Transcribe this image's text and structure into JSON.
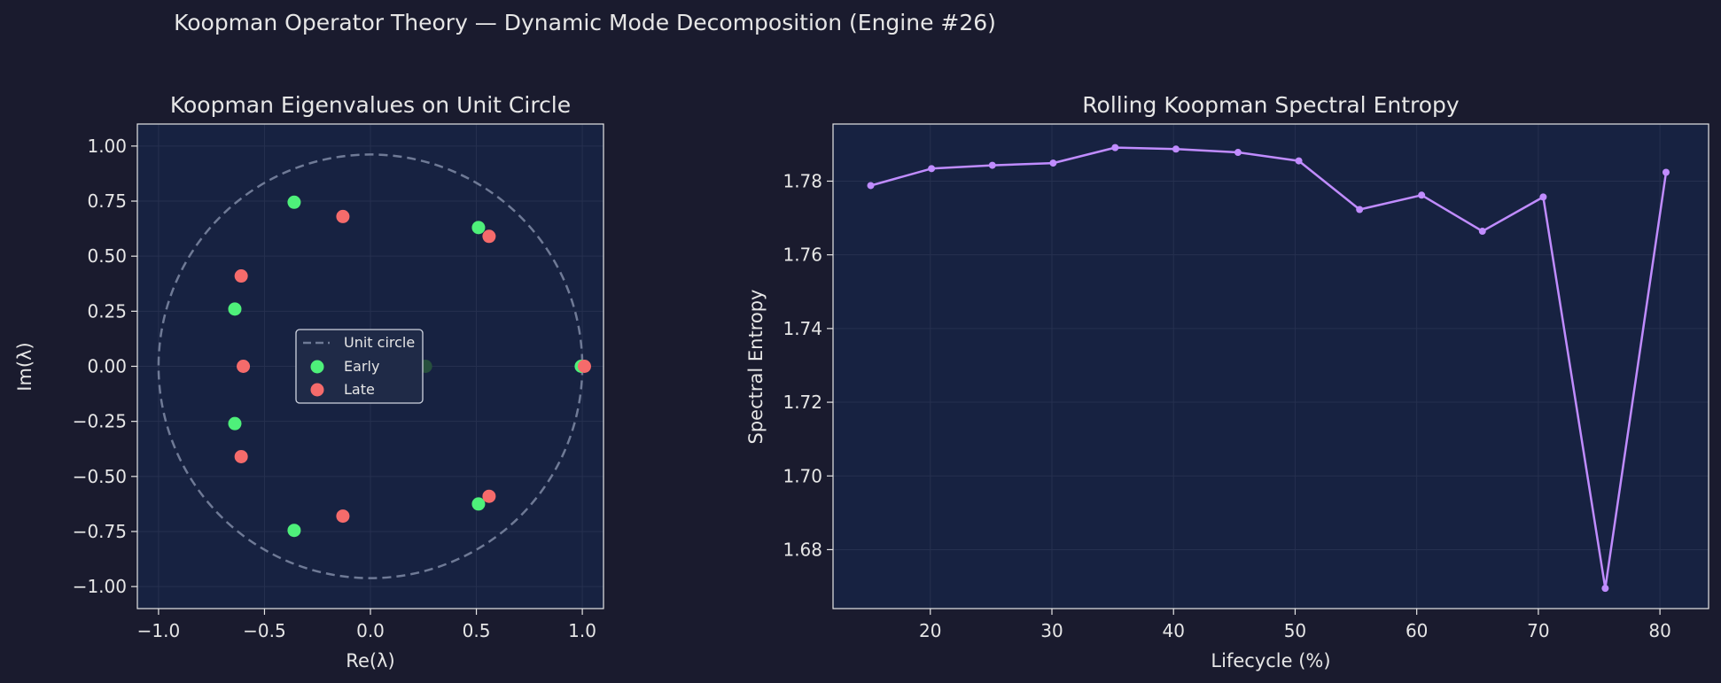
{
  "suptitle": "Koopman Operator Theory — Dynamic Mode Decomposition (Engine #26)",
  "colors": {
    "background": "#1a1b2e",
    "axes_bg": "#172241",
    "text": "#e6e6e6",
    "early": "#4ef07a",
    "late": "#f56b6b",
    "unit_circle": "#6f7a96",
    "entropy_line": "#c08cff",
    "grid": "#26304f",
    "faint_point": "#27503d"
  },
  "chart_data": [
    {
      "type": "scatter",
      "title": "Koopman Eigenvalues on Unit Circle",
      "xlabel": "Re(λ)",
      "ylabel": "Im(λ)",
      "xlim": [
        -1.1,
        1.1
      ],
      "ylim": [
        -1.1,
        1.1
      ],
      "xticks": [
        -1.0,
        -0.5,
        0.0,
        0.5,
        1.0
      ],
      "xtick_labels": [
        "−1.0",
        "−0.5",
        "0.0",
        "0.5",
        "1.0"
      ],
      "yticks": [
        1.0,
        0.75,
        0.5,
        0.25,
        0.0,
        -0.25,
        -0.5,
        -0.75,
        -1.0
      ],
      "ytick_labels": [
        "1.00",
        "0.75",
        "0.50",
        "0.25",
        "0.00",
        "−0.25",
        "−0.50",
        "−0.75",
        "−1.00"
      ],
      "grid": true,
      "legend_position": "center",
      "legend": [
        {
          "label": "Unit circle",
          "kind": "dashed-line"
        },
        {
          "label": "Early",
          "kind": "marker",
          "series": "early"
        },
        {
          "label": "Late",
          "kind": "marker",
          "series": "late"
        }
      ],
      "series": [
        {
          "name": "Early",
          "key": "early",
          "points": [
            [
              -0.36,
              0.745
            ],
            [
              -0.36,
              -0.745
            ],
            [
              -0.64,
              0.26
            ],
            [
              -0.64,
              -0.26
            ],
            [
              0.51,
              0.63
            ],
            [
              0.51,
              -0.625
            ],
            [
              0.995,
              0.0
            ],
            [
              0.26,
              0.0
            ]
          ]
        },
        {
          "name": "Late",
          "key": "late",
          "points": [
            [
              -0.13,
              0.68
            ],
            [
              -0.13,
              -0.68
            ],
            [
              -0.61,
              0.41
            ],
            [
              -0.61,
              -0.41
            ],
            [
              -0.6,
              0.0
            ],
            [
              0.56,
              0.59
            ],
            [
              0.56,
              -0.59
            ],
            [
              1.01,
              0.0
            ]
          ]
        }
      ]
    },
    {
      "type": "line",
      "title": "Rolling Koopman Spectral Entropy",
      "xlabel": "Lifecycle (%)",
      "ylabel": "Spectral Entropy",
      "xlim": [
        12,
        84
      ],
      "ylim": [
        1.664,
        1.7955
      ],
      "xticks": [
        20,
        30,
        40,
        50,
        60,
        70,
        80
      ],
      "xtick_labels": [
        "20",
        "30",
        "40",
        "50",
        "60",
        "70",
        "80"
      ],
      "yticks": [
        1.68,
        1.7,
        1.72,
        1.74,
        1.76,
        1.78
      ],
      "ytick_labels": [
        "1.68",
        "1.70",
        "1.72",
        "1.74",
        "1.76",
        "1.78"
      ],
      "grid": true,
      "x": [
        15.1,
        20.1,
        25.1,
        30.1,
        35.2,
        40.2,
        45.3,
        50.3,
        55.3,
        60.4,
        65.4,
        70.4,
        75.5,
        80.5
      ],
      "y": [
        1.7788,
        1.7834,
        1.7843,
        1.7849,
        1.7891,
        1.7887,
        1.7878,
        1.7855,
        1.7723,
        1.7762,
        1.7664,
        1.7757,
        1.6695,
        1.7824
      ]
    }
  ]
}
